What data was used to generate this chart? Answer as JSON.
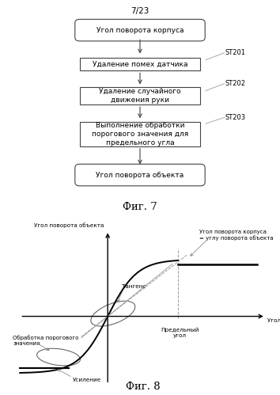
{
  "page_label": "7/23",
  "fig7_title": "Фиг. 7",
  "fig8_title": "Фиг. 8",
  "flowchart": {
    "start_label": "Угол поворота корпуса",
    "step1_label": "Удаление помех датчика",
    "step2_label": "Удаление случайного\nдвижения руки",
    "step3_label": "Выполнение обработки\nпорогового значения для\nпредельного угла",
    "end_label": "Угол поворота объекта",
    "st1": "ST201",
    "st2": "ST202",
    "st3": "ST203"
  },
  "graph": {
    "xlabel": "Угол поворота корпуса",
    "ylabel": "Угол поворота объекта",
    "label_tangent": "Тангенс",
    "label_threshold": "Обработка порогового\nзначения",
    "label_gain": "Усиление",
    "label_limit_angle": "Предельный\nугол",
    "label_equal": "Угол поворота корпуса\n= углу поворота объекта"
  },
  "colors": {
    "box_fill": "#ffffff",
    "box_edge": "#444444",
    "arrow": "#444444",
    "line_main": "#000000",
    "line_dashed": "#999999",
    "text": "#000000",
    "background": "#ffffff"
  }
}
